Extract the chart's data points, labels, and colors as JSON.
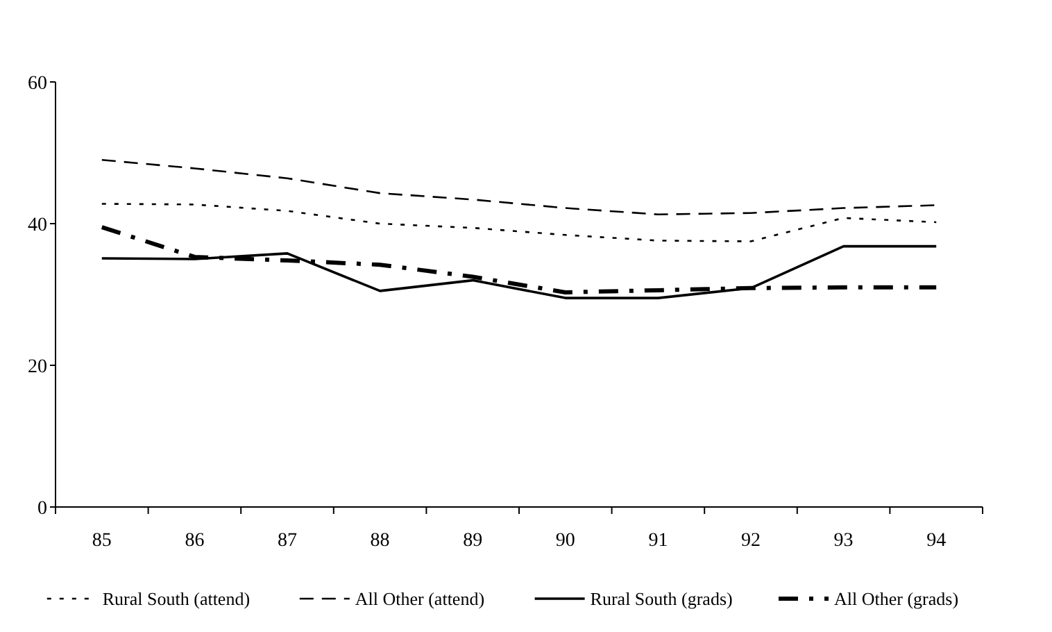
{
  "chart_data": {
    "type": "line",
    "categories": [
      "85",
      "86",
      "87",
      "88",
      "89",
      "90",
      "91",
      "92",
      "93",
      "94"
    ],
    "ylim": [
      0,
      60
    ],
    "yticks": [
      0,
      20,
      40,
      60
    ],
    "grid": false,
    "legend": "bottom",
    "marker": "none",
    "series": [
      {
        "name": "Rural South (attend)",
        "color": "#000000",
        "line_style": "dotted",
        "values": [
          42.8,
          42.7,
          41.8,
          40,
          39.4,
          38.4,
          37.6,
          37.5,
          40.8,
          40.2
        ]
      },
      {
        "name": "All Other (attend)",
        "color": "#000000",
        "line_style": "dashed",
        "values": [
          49,
          47.8,
          46.4,
          44.3,
          43.4,
          42.2,
          41.3,
          41.5,
          42.2,
          42.6
        ]
      },
      {
        "name": "Rural South (grads)",
        "color": "#000000",
        "line_style": "solid",
        "values": [
          35.1,
          35,
          35.8,
          30.5,
          32,
          29.5,
          29.5,
          30.9,
          36.8,
          36.8
        ]
      },
      {
        "name": "All Other (grads)",
        "color": "#000000",
        "line_style": "dashdot",
        "values": [
          39.5,
          35.3,
          34.8,
          34.2,
          32.5,
          30.3,
          30.6,
          30.9,
          31,
          31
        ]
      }
    ]
  }
}
